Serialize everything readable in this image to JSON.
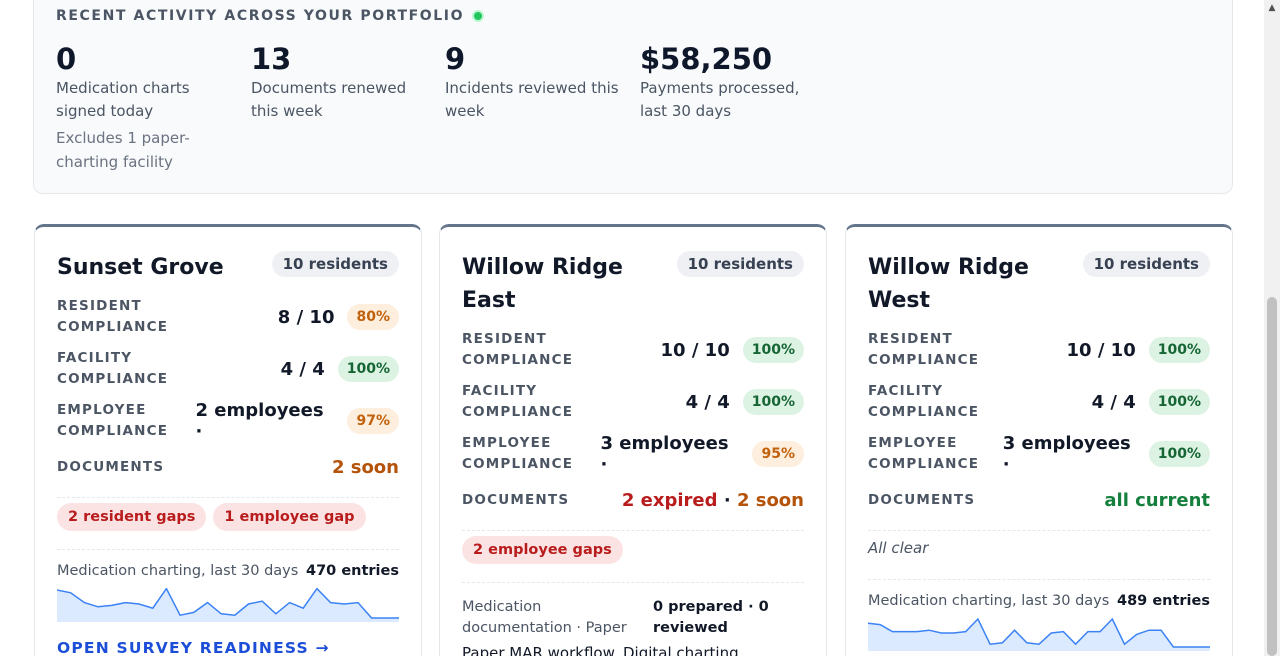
{
  "activity": {
    "title": "RECENT ACTIVITY ACROSS YOUR PORTFOLIO",
    "stats": [
      {
        "value": "0",
        "label": "Medication charts signed today",
        "note": "Excludes 1 paper-charting facility"
      },
      {
        "value": "13",
        "label": "Documents renewed this week"
      },
      {
        "value": "9",
        "label": "Incidents reviewed this week"
      },
      {
        "value": "$58,250",
        "label": "Payments processed, last 30 days"
      }
    ]
  },
  "labels": {
    "resident_compliance": "RESIDENT COMPLIANCE",
    "facility_compliance": "FACILITY COMPLIANCE",
    "employee_compliance": "EMPLOYEE COMPLIANCE",
    "documents": "DOCUMENTS",
    "med_charting": "Medication charting, last 30 days",
    "survey_link": "OPEN SURVEY READINESS →",
    "separator": "·"
  },
  "facilities": [
    {
      "name": "Sunset Grove",
      "residents": "10 residents",
      "resident_compliance": {
        "value": "8 / 10",
        "pct": "80%"
      },
      "facility_compliance": {
        "value": "4 / 4",
        "pct": "100%"
      },
      "employee_compliance": {
        "value": "2 employees ·",
        "pct": "97%"
      },
      "documents": {
        "soon": "2 soon"
      },
      "gaps": [
        "2 resident gaps",
        "1 employee gap"
      ],
      "charting_entries": "470 entries",
      "sparkline": [
        1.0,
        0.9,
        0.55,
        0.4,
        0.45,
        0.55,
        0.5,
        0.35,
        1.05,
        0.1,
        0.2,
        0.55,
        0.15,
        0.1,
        0.5,
        0.6,
        0.15,
        0.55,
        0.35,
        1.05,
        0.55,
        0.5,
        0.55,
        0.0,
        0.0,
        0.0
      ]
    },
    {
      "name": "Willow Ridge East",
      "residents": "10 residents",
      "resident_compliance": {
        "value": "10 / 10",
        "pct": "100%"
      },
      "facility_compliance": {
        "value": "4 / 4",
        "pct": "100%"
      },
      "employee_compliance": {
        "value": "3 employees ·",
        "pct": "95%"
      },
      "documents": {
        "expired": "2 expired",
        "soon": "2 soon"
      },
      "gaps": [
        "2 employee gaps"
      ],
      "med_documentation": {
        "label": "Medication documentation · Paper",
        "status": "0 prepared · 0 reviewed",
        "workflow": "Paper MAR workflow. Digital charting"
      }
    },
    {
      "name": "Willow Ridge West",
      "residents": "10 residents",
      "resident_compliance": {
        "value": "10 / 10",
        "pct": "100%"
      },
      "facility_compliance": {
        "value": "4 / 4",
        "pct": "100%"
      },
      "employee_compliance": {
        "value": "3 employees ·",
        "pct": "100%"
      },
      "documents": {
        "current": "all current"
      },
      "all_clear": "All clear",
      "charting_entries": "489 entries",
      "sparkline": [
        0.85,
        0.8,
        0.55,
        0.55,
        0.55,
        0.6,
        0.5,
        0.5,
        0.55,
        1.0,
        0.1,
        0.15,
        0.6,
        0.15,
        0.1,
        0.5,
        0.55,
        0.1,
        0.55,
        0.55,
        1.0,
        0.1,
        0.45,
        0.6,
        0.6,
        0.0,
        0.0,
        0.0,
        0.0
      ]
    }
  ],
  "colors": {
    "accent_link": "#1d4ed8",
    "live_dot": "#22c55e",
    "expired": "#b91c1c",
    "soon": "#b45309",
    "current": "#15803d",
    "spark_line": "#3b82f6",
    "spark_fill": "#dbeafe"
  }
}
